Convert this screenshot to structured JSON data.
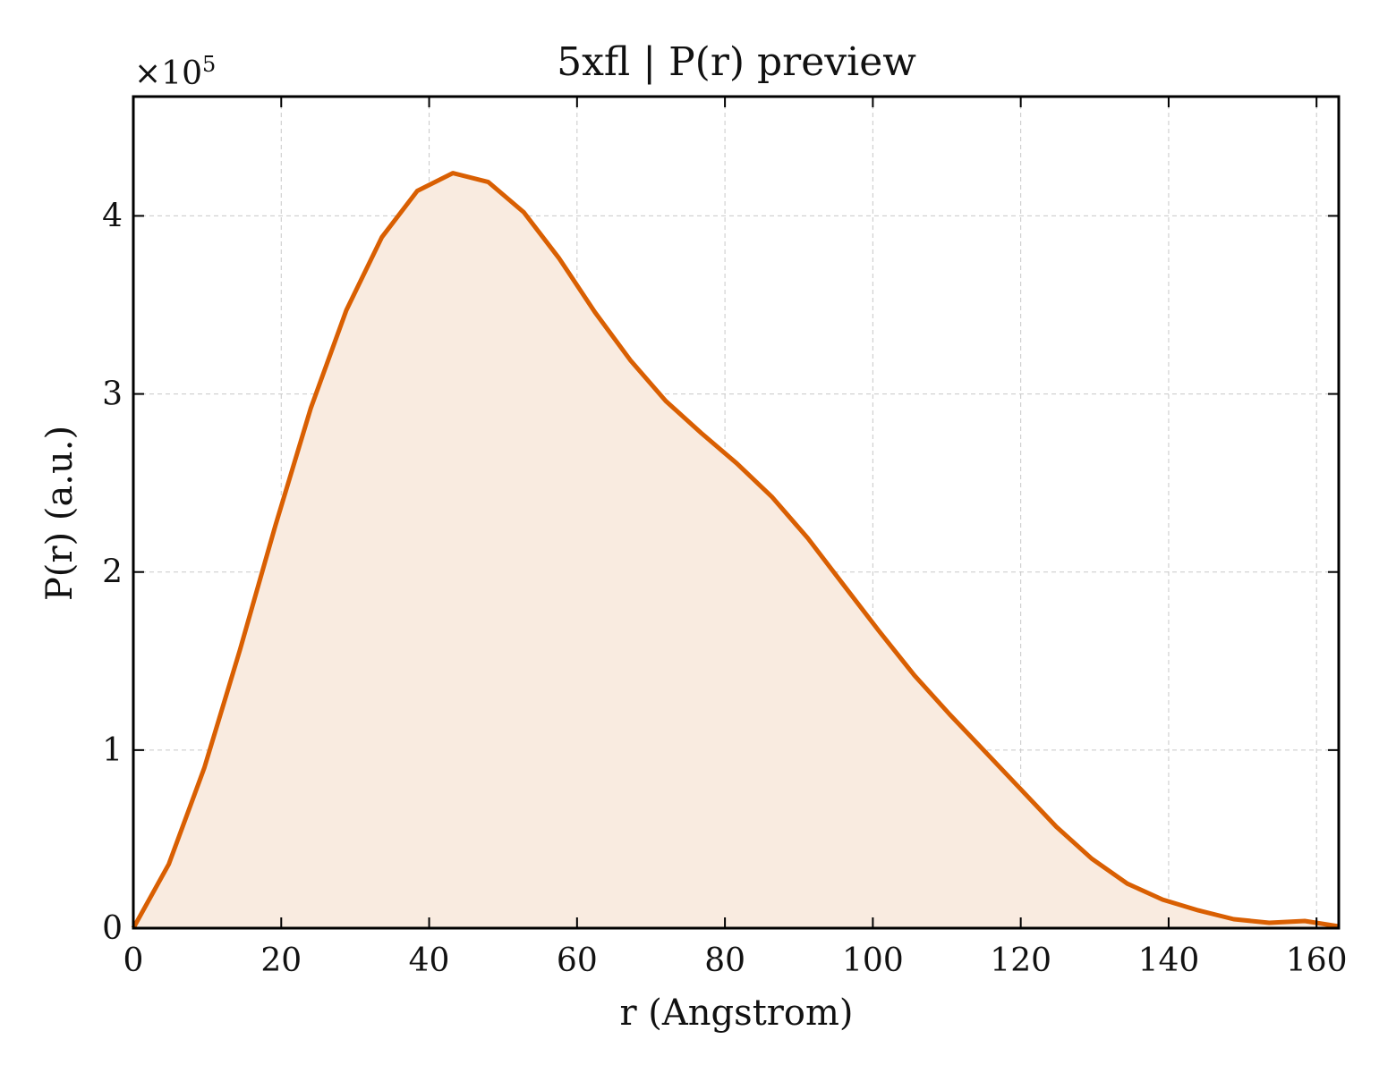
{
  "chart_data": {
    "type": "area",
    "title": "5xfl | P(r) preview",
    "xlabel": "r (Angstrom)",
    "ylabel": "P(r) (a.u.)",
    "y_multiplier": "×10",
    "y_multiplier_exp": "5",
    "xlim": [
      0,
      163
    ],
    "ylim": [
      0,
      4.67
    ],
    "x_ticks": [
      0,
      20,
      40,
      60,
      80,
      100,
      120,
      140,
      160
    ],
    "y_ticks": [
      0,
      1,
      2,
      3,
      4
    ],
    "grid": true,
    "line_color": "#d95f02",
    "fill_color": "#f9ebe0",
    "series": [
      {
        "x": [
          0,
          4.8,
          9.6,
          14.4,
          19.2,
          24.0,
          28.8,
          33.6,
          38.4,
          43.2,
          48.0,
          52.8,
          57.6,
          62.4,
          67.2,
          72.0,
          76.8,
          81.6,
          86.4,
          91.2,
          96.0,
          100.8,
          105.6,
          110.4,
          115.2,
          120.0,
          124.8,
          129.6,
          134.4,
          139.2,
          144.0,
          148.8,
          153.6,
          158.4,
          163.0
        ],
        "y": [
          0.0,
          0.36,
          0.9,
          1.56,
          2.26,
          2.92,
          3.47,
          3.88,
          4.14,
          4.24,
          4.19,
          4.02,
          3.76,
          3.46,
          3.19,
          2.96,
          2.78,
          2.61,
          2.42,
          2.19,
          1.93,
          1.67,
          1.42,
          1.2,
          0.99,
          0.78,
          0.57,
          0.39,
          0.25,
          0.16,
          0.1,
          0.05,
          0.03,
          0.04,
          0.01
        ]
      }
    ]
  }
}
